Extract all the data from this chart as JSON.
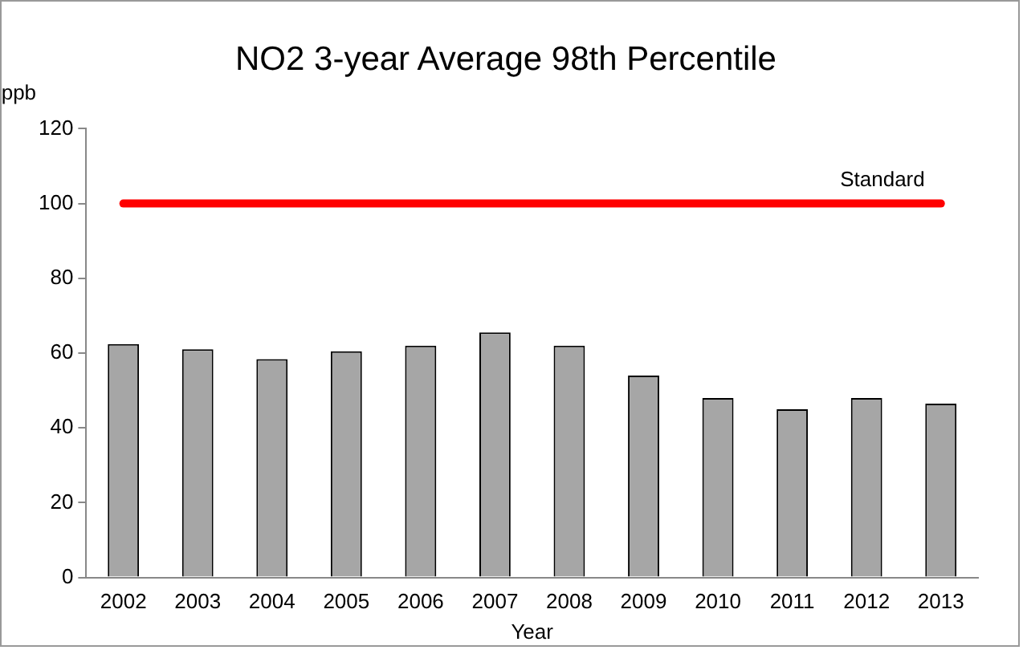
{
  "chart_data": {
    "type": "bar",
    "title": "NO2 3-year Average 98th Percentile",
    "xlabel": "Year",
    "ylabel": "ppb",
    "categories": [
      "2002",
      "2003",
      "2004",
      "2005",
      "2006",
      "2007",
      "2008",
      "2009",
      "2010",
      "2011",
      "2012",
      "2013"
    ],
    "values": [
      62.4,
      61,
      58.4,
      60.5,
      62,
      65.5,
      62,
      54,
      48,
      45,
      48,
      46.5
    ],
    "color": "#a6a6a6",
    "ylim": [
      0,
      120
    ],
    "yticks": [
      0,
      20,
      40,
      60,
      80,
      100,
      120
    ],
    "grid": false,
    "legend": false,
    "ref_lines": [
      {
        "axis": "y",
        "value": 100,
        "label": "Standard",
        "color": "#ff0000"
      }
    ]
  }
}
